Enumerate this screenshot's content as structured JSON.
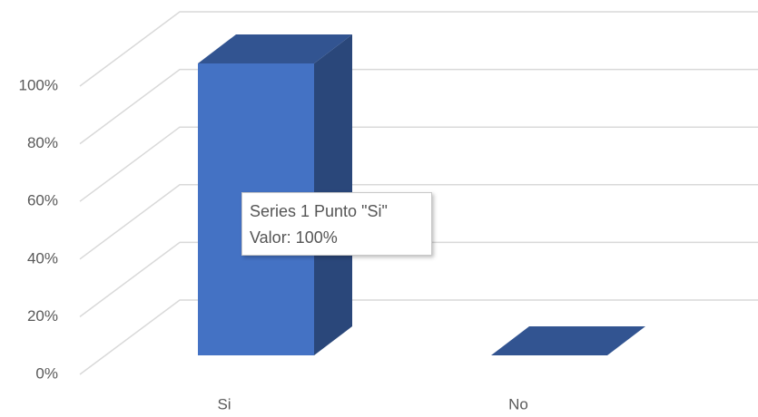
{
  "chart_data": {
    "type": "bar3d",
    "categories": [
      "Si",
      "No"
    ],
    "series": [
      {
        "name": "Series 1",
        "color": "#4472c4",
        "values": [
          100,
          0
        ]
      }
    ],
    "ylim": [
      0,
      100
    ],
    "yticks": [
      {
        "value": 0,
        "label": "0%"
      },
      {
        "value": 20,
        "label": "20%"
      },
      {
        "value": 40,
        "label": "40%"
      },
      {
        "value": 60,
        "label": "60%"
      },
      {
        "value": 80,
        "label": "80%"
      },
      {
        "value": 100,
        "label": "100%"
      }
    ],
    "grid": true,
    "tooltip": {
      "line1": "Series 1 Punto \"Si\"",
      "line2": "Valor: 100%"
    }
  }
}
